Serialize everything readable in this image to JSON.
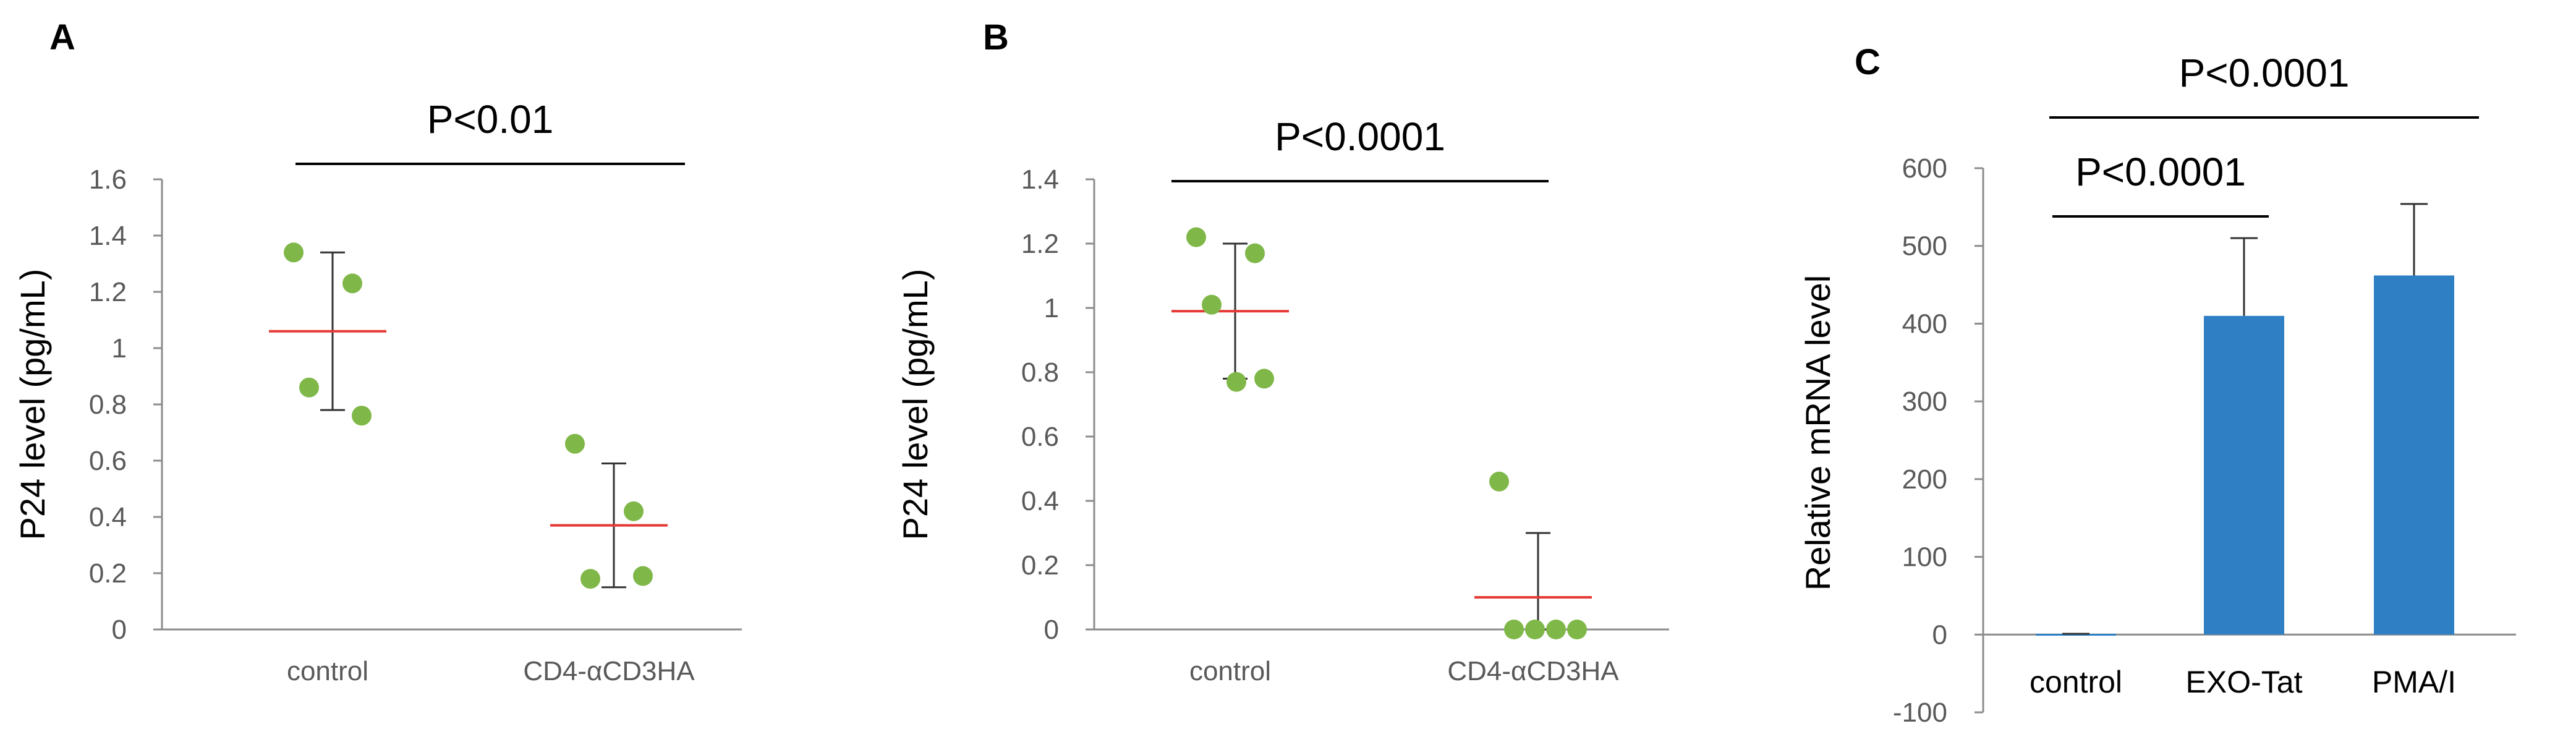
{
  "panels": {
    "A": "A",
    "B": "B",
    "C": "C"
  },
  "chart_data": [
    {
      "type": "scatter",
      "panel": "A",
      "ylabel": "P24 level (pg/mL)",
      "ylim": [
        0,
        1.6
      ],
      "yticks": [
        0,
        0.2,
        0.4,
        0.6,
        0.8,
        1,
        1.2,
        1.4,
        1.6
      ],
      "ytick_labels": [
        "0",
        "0.2",
        "0.4",
        "0.6",
        "0.8",
        "1",
        "1.2",
        "1.4",
        "1.6"
      ],
      "categories": [
        "control",
        "CD4-αCD3HA"
      ],
      "points": [
        [
          1.34,
          1.23,
          0.86,
          0.76
        ],
        [
          0.66,
          0.42,
          0.18,
          0.19
        ]
      ],
      "means": [
        1.06,
        0.37
      ],
      "sd": [
        0.28,
        0.22
      ],
      "significance": [
        {
          "from": 0,
          "to": 1,
          "label": "P<0.01"
        }
      ]
    },
    {
      "type": "scatter",
      "panel": "B",
      "ylabel": "P24 level  (pg/mL)",
      "ylim": [
        0,
        1.4
      ],
      "yticks": [
        0,
        0.2,
        0.4,
        0.6,
        0.8,
        1,
        1.2,
        1.4
      ],
      "ytick_labels": [
        "0",
        "0.2",
        "0.4",
        "0.6",
        "0.8",
        "1",
        "1.2",
        "1.4"
      ],
      "categories": [
        "control",
        "CD4-αCD3HA"
      ],
      "points": [
        [
          1.22,
          1.17,
          1.01,
          0.78,
          0.77
        ],
        [
          0.46,
          0.0,
          0.0,
          0.0,
          0.0
        ]
      ],
      "means": [
        0.99,
        0.1
      ],
      "sd": [
        0.21,
        0.2
      ],
      "significance": [
        {
          "from": 0,
          "to": 1,
          "label": "P<0.0001"
        }
      ]
    },
    {
      "type": "bar",
      "panel": "C",
      "ylabel": "Relative mRNA level",
      "ylim": [
        -100,
        600
      ],
      "yticks": [
        -100,
        0,
        100,
        200,
        300,
        400,
        500,
        600
      ],
      "ytick_labels": [
        "-100",
        "0",
        "100",
        "200",
        "300",
        "400",
        "500",
        "600"
      ],
      "categories": [
        "control",
        "EXO-Tat",
        "PMA/I"
      ],
      "values": [
        1,
        410,
        462
      ],
      "errors": [
        0,
        100,
        92
      ],
      "color": "#2e7fc4",
      "significance": [
        {
          "from": 0,
          "to": 1,
          "label": "P<0.0001"
        },
        {
          "from": 0,
          "to": 2,
          "label": "P<0.0001"
        }
      ]
    }
  ],
  "colors": {
    "points": "#7fb848",
    "mean_line": "#e53935",
    "bar": "#2e7fc4",
    "axis": "#8c8c8c"
  }
}
